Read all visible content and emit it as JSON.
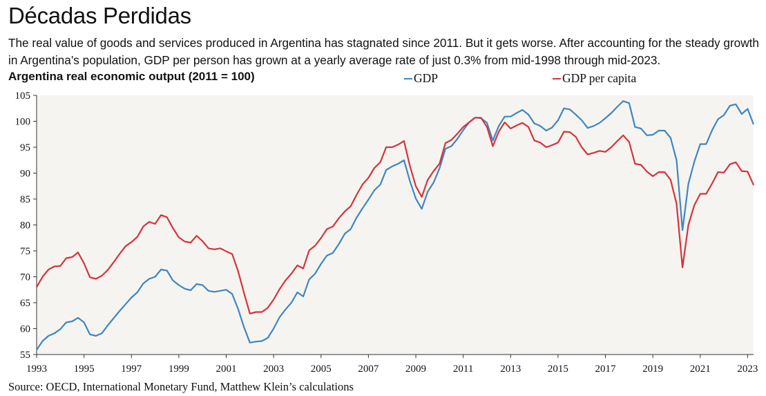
{
  "title": "Décadas Perdidas",
  "subtitle": "The real value of goods and services produced in Argentina has stagnated since 2011. But it gets worse. After accounting for the steady growth in Argentina’s population, GDP per person has grown at a yearly average rate of just 0.3% from mid-1998 through mid-2023.",
  "source": "Source: OECD, International Monetary Fund, Matthew Klein’s calculations",
  "chart_data": {
    "type": "line",
    "title": "Argentina real economic output (2011 = 100)",
    "xlabel": "",
    "ylabel": "",
    "xlim": [
      1993.0,
      2023.25
    ],
    "ylim": [
      55,
      105
    ],
    "yticks": [
      55,
      60,
      65,
      70,
      75,
      80,
      85,
      90,
      95,
      100,
      105
    ],
    "xticks": [
      "1993",
      "1995",
      "1997",
      "1999",
      "2001",
      "2003",
      "2005",
      "2007",
      "2009",
      "2011",
      "2013",
      "2015",
      "2017",
      "2019",
      "2021",
      "2023"
    ],
    "legend_position": "top",
    "grid": false,
    "background": "#f6f4f1",
    "series": [
      {
        "name": "GDP",
        "color": "#3d86c2",
        "x": [
          1993.0,
          1993.25,
          1993.5,
          1993.75,
          1994.0,
          1994.25,
          1994.5,
          1994.75,
          1995.0,
          1995.25,
          1995.5,
          1995.75,
          1996.0,
          1996.25,
          1996.5,
          1996.75,
          1997.0,
          1997.25,
          1997.5,
          1997.75,
          1998.0,
          1998.25,
          1998.5,
          1998.75,
          1999.0,
          1999.25,
          1999.5,
          1999.75,
          2000.0,
          2000.25,
          2000.5,
          2000.75,
          2001.0,
          2001.25,
          2001.5,
          2001.75,
          2002.0,
          2002.25,
          2002.5,
          2002.75,
          2003.0,
          2003.25,
          2003.5,
          2003.75,
          2004.0,
          2004.25,
          2004.5,
          2004.75,
          2005.0,
          2005.25,
          2005.5,
          2005.75,
          2006.0,
          2006.25,
          2006.5,
          2006.75,
          2007.0,
          2007.25,
          2007.5,
          2007.75,
          2008.0,
          2008.25,
          2008.5,
          2008.75,
          2009.0,
          2009.25,
          2009.5,
          2009.75,
          2010.0,
          2010.25,
          2010.5,
          2010.75,
          2011.0,
          2011.25,
          2011.5,
          2011.75,
          2012.0,
          2012.25,
          2012.5,
          2012.75,
          2013.0,
          2013.25,
          2013.5,
          2013.75,
          2014.0,
          2014.25,
          2014.5,
          2014.75,
          2015.0,
          2015.25,
          2015.5,
          2015.75,
          2016.0,
          2016.25,
          2016.5,
          2016.75,
          2017.0,
          2017.25,
          2017.5,
          2017.75,
          2018.0,
          2018.25,
          2018.5,
          2018.75,
          2019.0,
          2019.25,
          2019.5,
          2019.75,
          2020.0,
          2020.25,
          2020.5,
          2020.75,
          2021.0,
          2021.25,
          2021.5,
          2021.75,
          2022.0,
          2022.25,
          2022.5,
          2022.75,
          2023.0,
          2023.25
        ],
        "values": [
          55.9,
          57.6,
          58.6,
          59.1,
          59.9,
          61.2,
          61.4,
          62.1,
          61.2,
          58.9,
          58.6,
          59.1,
          60.6,
          62.0,
          63.4,
          64.7,
          66.0,
          67.0,
          68.7,
          69.6,
          70.0,
          71.4,
          71.2,
          69.3,
          68.4,
          67.7,
          67.4,
          68.6,
          68.4,
          67.3,
          67.1,
          67.3,
          67.5,
          66.7,
          63.8,
          60.3,
          57.3,
          57.5,
          57.6,
          58.2,
          60.0,
          62.2,
          63.7,
          65.0,
          67.0,
          66.2,
          69.5,
          70.6,
          72.5,
          74.1,
          74.6,
          76.3,
          78.3,
          79.2,
          81.4,
          83.2,
          84.9,
          86.7,
          87.8,
          90.6,
          91.3,
          91.8,
          92.5,
          88.5,
          85.1,
          83.1,
          86.4,
          88.2,
          90.9,
          94.7,
          95.2,
          96.6,
          98.3,
          99.8,
          100.7,
          100.6,
          99.7,
          96.3,
          99.1,
          100.9,
          100.9,
          101.6,
          102.2,
          101.3,
          99.6,
          99.1,
          98.2,
          98.8,
          100.2,
          102.5,
          102.3,
          101.3,
          100.2,
          98.7,
          99.1,
          99.7,
          100.6,
          101.6,
          102.8,
          103.9,
          103.5,
          98.9,
          98.6,
          97.3,
          97.4,
          98.2,
          98.2,
          96.8,
          92.5,
          79.0,
          87.9,
          92.2,
          95.6,
          95.6,
          98.3,
          100.4,
          101.2,
          103.0,
          103.3,
          101.4,
          102.4,
          99.4
        ]
      },
      {
        "name": "GDP per capita",
        "color": "#d6323a",
        "x": [
          1993.0,
          1993.25,
          1993.5,
          1993.75,
          1994.0,
          1994.25,
          1994.5,
          1994.75,
          1995.0,
          1995.25,
          1995.5,
          1995.75,
          1996.0,
          1996.25,
          1996.5,
          1996.75,
          1997.0,
          1997.25,
          1997.5,
          1997.75,
          1998.0,
          1998.25,
          1998.5,
          1998.75,
          1999.0,
          1999.25,
          1999.5,
          1999.75,
          2000.0,
          2000.25,
          2000.5,
          2000.75,
          2001.0,
          2001.25,
          2001.5,
          2001.75,
          2002.0,
          2002.25,
          2002.5,
          2002.75,
          2003.0,
          2003.25,
          2003.5,
          2003.75,
          2004.0,
          2004.25,
          2004.5,
          2004.75,
          2005.0,
          2005.25,
          2005.5,
          2005.75,
          2006.0,
          2006.25,
          2006.5,
          2006.75,
          2007.0,
          2007.25,
          2007.5,
          2007.75,
          2008.0,
          2008.25,
          2008.5,
          2008.75,
          2009.0,
          2009.25,
          2009.5,
          2009.75,
          2010.0,
          2010.25,
          2010.5,
          2010.75,
          2011.0,
          2011.25,
          2011.5,
          2011.75,
          2012.0,
          2012.25,
          2012.5,
          2012.75,
          2013.0,
          2013.25,
          2013.5,
          2013.75,
          2014.0,
          2014.25,
          2014.5,
          2014.75,
          2015.0,
          2015.25,
          2015.5,
          2015.75,
          2016.0,
          2016.25,
          2016.5,
          2016.75,
          2017.0,
          2017.25,
          2017.5,
          2017.75,
          2018.0,
          2018.25,
          2018.5,
          2018.75,
          2019.0,
          2019.25,
          2019.5,
          2019.75,
          2020.0,
          2020.25,
          2020.5,
          2020.75,
          2021.0,
          2021.25,
          2021.5,
          2021.75,
          2022.0,
          2022.25,
          2022.5,
          2022.75,
          2023.0,
          2023.25
        ],
        "values": [
          68.0,
          70.0,
          71.4,
          72.0,
          72.1,
          73.6,
          73.8,
          74.7,
          72.6,
          69.9,
          69.6,
          70.2,
          71.3,
          72.8,
          74.4,
          75.9,
          76.7,
          77.7,
          79.7,
          80.6,
          80.2,
          81.9,
          81.5,
          79.4,
          77.6,
          76.8,
          76.6,
          77.9,
          76.9,
          75.5,
          75.3,
          75.5,
          74.9,
          74.4,
          71.1,
          66.9,
          62.9,
          63.2,
          63.2,
          64.0,
          65.6,
          67.6,
          69.3,
          70.6,
          72.2,
          71.6,
          75.1,
          76.0,
          77.5,
          79.2,
          79.7,
          81.3,
          82.6,
          83.6,
          85.8,
          87.8,
          89.1,
          91.0,
          92.1,
          95.0,
          95.0,
          95.5,
          96.2,
          91.4,
          87.5,
          85.4,
          88.7,
          90.4,
          91.8,
          95.8,
          96.4,
          97.6,
          98.9,
          99.8,
          100.7,
          100.7,
          98.9,
          95.2,
          98.0,
          99.8,
          98.6,
          99.2,
          99.7,
          98.9,
          96.3,
          95.9,
          95.0,
          95.4,
          95.9,
          98.0,
          97.9,
          97.0,
          95.0,
          93.6,
          93.9,
          94.3,
          94.1,
          95.0,
          96.2,
          97.3,
          96.0,
          91.8,
          91.6,
          90.3,
          89.4,
          90.2,
          90.2,
          88.7,
          84.1,
          71.8,
          80.0,
          83.8,
          86.0,
          86.0,
          88.0,
          90.2,
          90.1,
          91.7,
          92.1,
          90.4,
          90.3,
          87.7
        ]
      }
    ]
  }
}
